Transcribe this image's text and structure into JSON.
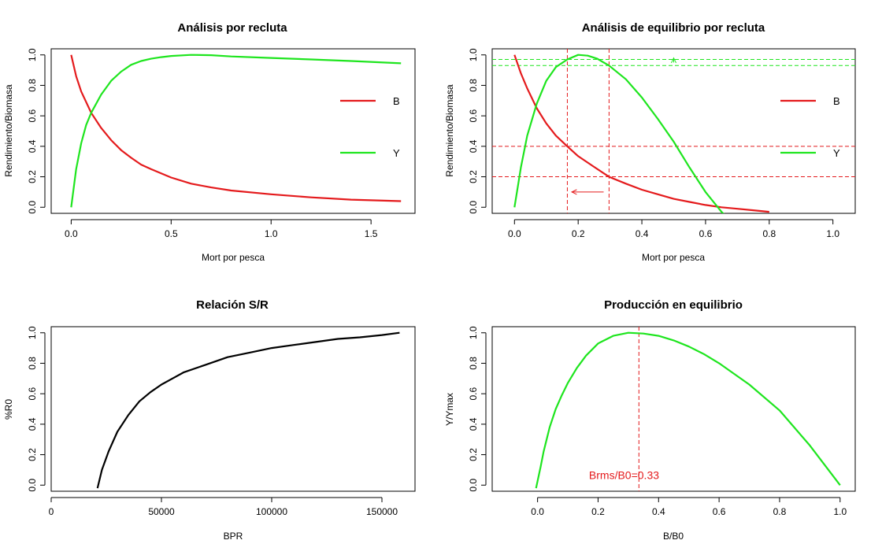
{
  "chart_data": [
    {
      "type": "line",
      "title": "Análisis por recluta",
      "xlabel": "Mort por pesca",
      "ylabel": "Rendimiento/Biomasa",
      "xlim": [
        -0.1,
        1.72
      ],
      "ylim": [
        -0.04,
        1.04
      ],
      "xticks": [
        0,
        0.5,
        1,
        1.5
      ],
      "xtick_labels": [
        "0.0",
        "0.5",
        "1.0",
        "1.5"
      ],
      "yticks": [
        0,
        0.2,
        0.4,
        0.6,
        0.8,
        1
      ],
      "ytick_labels": [
        "0.0",
        "0.2",
        "0.4",
        "0.6",
        "0.8",
        "1.0"
      ],
      "legend": "right",
      "grid": false,
      "series": [
        {
          "name": "B",
          "color": "#e41a1c",
          "x": [
            0,
            0.025,
            0.05,
            0.1,
            0.15,
            0.2,
            0.25,
            0.3,
            0.35,
            0.4,
            0.5,
            0.6,
            0.7,
            0.8,
            1.0,
            1.2,
            1.4,
            1.65
          ],
          "y": [
            1.0,
            0.86,
            0.76,
            0.62,
            0.52,
            0.44,
            0.375,
            0.325,
            0.28,
            0.25,
            0.195,
            0.155,
            0.13,
            0.11,
            0.085,
            0.065,
            0.05,
            0.04
          ]
        },
        {
          "name": "Y",
          "color": "#1ee51e",
          "x": [
            0,
            0.025,
            0.05,
            0.075,
            0.1,
            0.15,
            0.2,
            0.25,
            0.3,
            0.35,
            0.4,
            0.45,
            0.5,
            0.6,
            0.7,
            0.8,
            1.0,
            1.2,
            1.4,
            1.65
          ],
          "y": [
            0.0,
            0.25,
            0.42,
            0.54,
            0.62,
            0.74,
            0.83,
            0.89,
            0.935,
            0.96,
            0.975,
            0.985,
            0.993,
            1.0,
            0.998,
            0.99,
            0.98,
            0.97,
            0.96,
            0.945
          ]
        }
      ]
    },
    {
      "type": "line",
      "title": "Análisis de equilibrio por recluta",
      "xlabel": "Mort por pesca",
      "ylabel": "Rendimiento/Biomasa",
      "xlim": [
        -0.07,
        1.07
      ],
      "ylim": [
        -0.04,
        1.04
      ],
      "xticks": [
        0,
        0.2,
        0.4,
        0.6,
        0.8,
        1
      ],
      "xtick_labels": [
        "0.0",
        "0.2",
        "0.4",
        "0.6",
        "0.8",
        "1.0"
      ],
      "yticks": [
        0,
        0.2,
        0.4,
        0.6,
        0.8,
        1
      ],
      "ytick_labels": [
        "0.0",
        "0.2",
        "0.4",
        "0.6",
        "0.8",
        "1.0"
      ],
      "legend": "right",
      "grid": false,
      "series": [
        {
          "name": "B",
          "color": "#e41a1c",
          "x": [
            0,
            0.02,
            0.04,
            0.07,
            0.1,
            0.13,
            0.166,
            0.2,
            0.25,
            0.297,
            0.35,
            0.4,
            0.45,
            0.5,
            0.55,
            0.6,
            0.65,
            0.7,
            0.75,
            0.8
          ],
          "y": [
            1.0,
            0.88,
            0.78,
            0.65,
            0.55,
            0.47,
            0.4,
            0.335,
            0.265,
            0.2,
            0.155,
            0.115,
            0.085,
            0.055,
            0.035,
            0.015,
            0.0,
            -0.01,
            -0.02,
            -0.03
          ]
        },
        {
          "name": "Y",
          "color": "#1ee51e",
          "x": [
            0,
            0.01,
            0.02,
            0.04,
            0.07,
            0.1,
            0.13,
            0.166,
            0.2,
            0.23,
            0.26,
            0.297,
            0.35,
            0.4,
            0.45,
            0.5,
            0.55,
            0.6,
            0.65,
            0.66
          ],
          "y": [
            0.0,
            0.13,
            0.26,
            0.47,
            0.68,
            0.83,
            0.92,
            0.97,
            1.0,
            0.995,
            0.975,
            0.93,
            0.84,
            0.72,
            0.58,
            0.43,
            0.26,
            0.1,
            -0.03,
            -0.05
          ]
        }
      ],
      "reference_lines": {
        "vertical": [
          {
            "x": 0.166,
            "color": "#e41a1c"
          },
          {
            "x": 0.297,
            "color": "#e41a1c"
          }
        ],
        "horizontal": [
          {
            "y": 0.4,
            "color": "#e41a1c"
          },
          {
            "y": 0.2,
            "color": "#e41a1c"
          },
          {
            "y": 0.97,
            "color": "#1ee51e"
          },
          {
            "y": 0.93,
            "color": "#1ee51e"
          }
        ]
      },
      "arrows": [
        {
          "x0": 0.28,
          "y0": 0.1,
          "x1": 0.18,
          "y1": 0.1,
          "color": "#e41a1c"
        },
        {
          "x0": 0.5,
          "y0": 0.95,
          "x1": 0.5,
          "y1": 0.98,
          "color": "#1ee51e"
        }
      ]
    },
    {
      "type": "line",
      "title": "Relación S/R",
      "xlabel": "BPR",
      "ylabel": "%R0",
      "xlim": [
        0,
        165000
      ],
      "ylim": [
        -0.04,
        1.04
      ],
      "xticks": [
        0,
        50000,
        100000,
        150000
      ],
      "xtick_labels": [
        "0",
        "50000",
        "100000",
        "150000"
      ],
      "yticks": [
        0,
        0.2,
        0.4,
        0.6,
        0.8,
        1
      ],
      "ytick_labels": [
        "0.0",
        "0.2",
        "0.4",
        "0.6",
        "0.8",
        "1.0"
      ],
      "grid": false,
      "series": [
        {
          "color": "#000000",
          "x": [
            21000,
            23000,
            26000,
            30000,
            35000,
            40000,
            45000,
            50000,
            55000,
            60000,
            70000,
            80000,
            90000,
            100000,
            110000,
            120000,
            130000,
            140000,
            150000,
            158000
          ],
          "y": [
            -0.02,
            0.1,
            0.22,
            0.35,
            0.46,
            0.55,
            0.61,
            0.66,
            0.7,
            0.74,
            0.79,
            0.84,
            0.87,
            0.9,
            0.92,
            0.94,
            0.96,
            0.97,
            0.985,
            1.0
          ]
        }
      ]
    },
    {
      "type": "line",
      "title": "Producción en equilibrio",
      "xlabel": "B/B0",
      "ylabel": "Y/Ymax",
      "xlim": [
        -0.15,
        1.05
      ],
      "ylim": [
        -0.04,
        1.04
      ],
      "xticks": [
        0,
        0.2,
        0.4,
        0.6,
        0.8,
        1
      ],
      "xtick_labels": [
        "0.0",
        "0.2",
        "0.4",
        "0.6",
        "0.8",
        "1.0"
      ],
      "yticks": [
        0,
        0.2,
        0.4,
        0.6,
        0.8,
        1
      ],
      "ytick_labels": [
        "0.0",
        "0.2",
        "0.4",
        "0.6",
        "0.8",
        "1.0"
      ],
      "grid": false,
      "series": [
        {
          "color": "#1ee51e",
          "x": [
            -0.005,
            0.01,
            0.02,
            0.04,
            0.06,
            0.08,
            0.1,
            0.13,
            0.16,
            0.2,
            0.25,
            0.3,
            0.35,
            0.4,
            0.45,
            0.5,
            0.55,
            0.6,
            0.7,
            0.8,
            0.9,
            1.0
          ],
          "y": [
            -0.02,
            0.12,
            0.22,
            0.38,
            0.5,
            0.59,
            0.67,
            0.77,
            0.85,
            0.93,
            0.98,
            1.0,
            0.995,
            0.98,
            0.95,
            0.91,
            0.86,
            0.8,
            0.66,
            0.49,
            0.26,
            0.0
          ]
        }
      ],
      "reference_lines": {
        "vertical": [
          {
            "x": 0.335,
            "color": "#e41a1c"
          }
        ]
      },
      "annotation": {
        "text": "Brms/B0=0.33",
        "x": 0.17,
        "y": 0.04,
        "color": "#e41a1c"
      }
    }
  ]
}
